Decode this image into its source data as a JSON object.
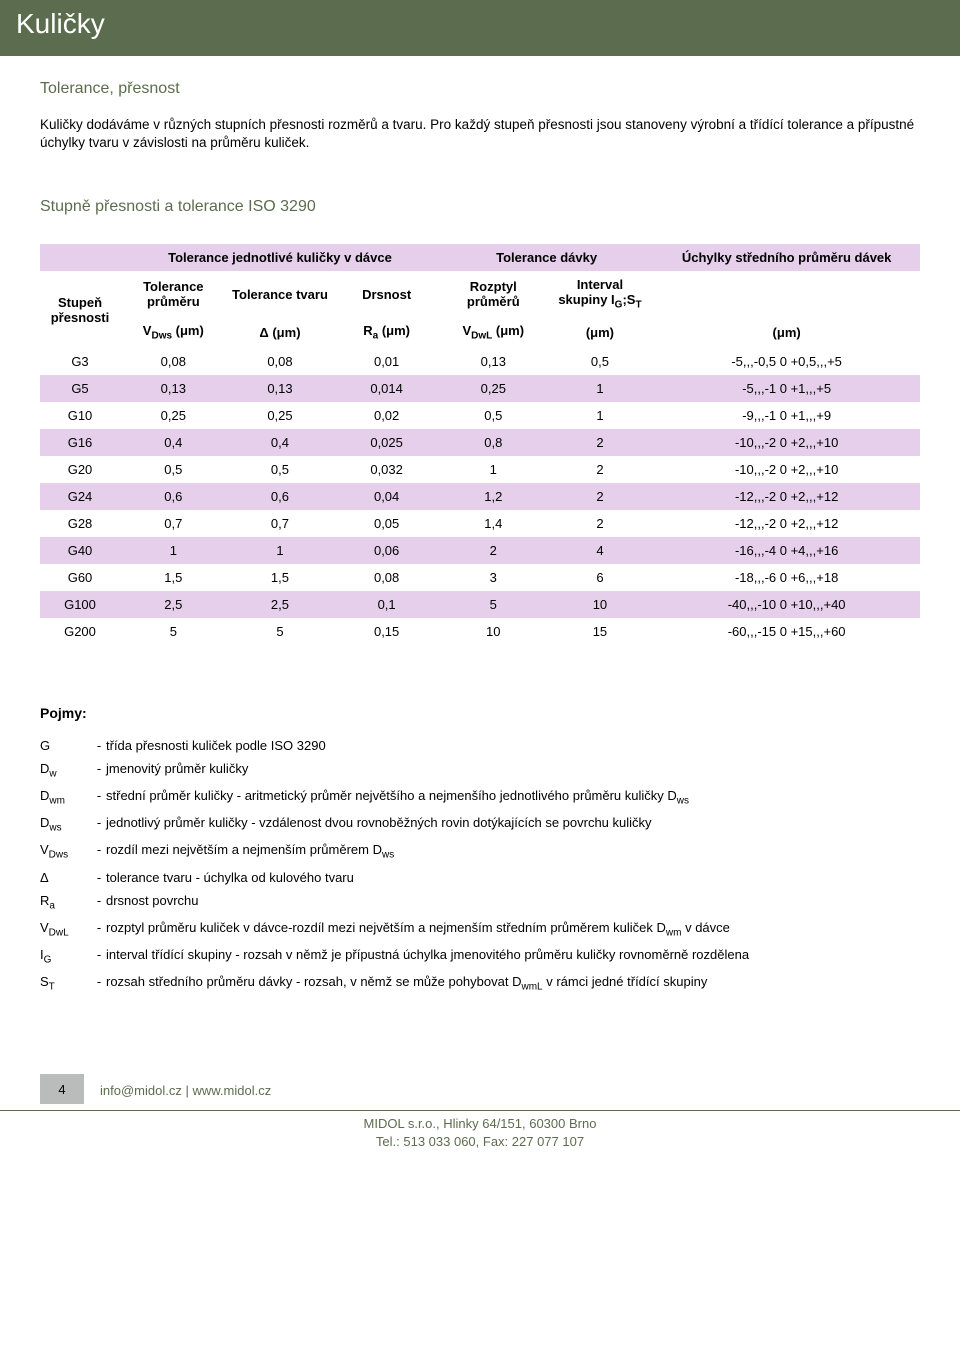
{
  "header": {
    "title": "Kuličky"
  },
  "subtitle": "Tolerance, přesnost",
  "intro": "Kuličky dodáváme v různých stupních přesnosti rozměrů a tvaru. Pro každý stupeň přesnosti  jsou stanoveny výrobní a třídící tolerance a přípustné úchylky tvaru v závislosti na průměru kuliček.",
  "section_title": "Stupně přesnosti a tolerance ISO 3290",
  "table": {
    "group_headers": {
      "blank": "",
      "g1": "Tolerance jednotlivé kuličky v dávce",
      "g2": "Tolerance dávky",
      "g3": "Úchylky středního průměru dávek"
    },
    "sub_headers": {
      "grade": "Stupeň přesnosti",
      "c1": "Tolerance průměru",
      "c2": "Tolerance tvaru",
      "c3": "Drsnost",
      "c4": "Rozptyl průměrů",
      "c5_html": "Interval skupiny I<sub class='sub'>G</sub>;S<sub class='sub'>T</sub>",
      "c6": ""
    },
    "unit_row": {
      "u1_html": "V<sub class='sub'>Dws</sub> (μm)",
      "u2": "Δ (μm)",
      "u3_html": "R<sub class='sub'>a</sub> (μm)",
      "u4_html": "V<sub class='sub'>DwL</sub> (μm)",
      "u5": "(μm)",
      "u6": "(μm)"
    },
    "rows": [
      {
        "g": "G3",
        "v1": "0,08",
        "v2": "0,08",
        "v3": "0,01",
        "v4": "0,13",
        "v5": "0,5",
        "v6": "-5,,,-0,5 0 +0,5,,,+5",
        "alt": false
      },
      {
        "g": "G5",
        "v1": "0,13",
        "v2": "0,13",
        "v3": "0,014",
        "v4": "0,25",
        "v5": "1",
        "v6": "-5,,,-1 0 +1,,,+5",
        "alt": true
      },
      {
        "g": "G10",
        "v1": "0,25",
        "v2": "0,25",
        "v3": "0,02",
        "v4": "0,5",
        "v5": "1",
        "v6": "-9,,,-1 0 +1,,,+9",
        "alt": false
      },
      {
        "g": "G16",
        "v1": "0,4",
        "v2": "0,4",
        "v3": "0,025",
        "v4": "0,8",
        "v5": "2",
        "v6": "-10,,,-2 0 +2,,,+10",
        "alt": true
      },
      {
        "g": "G20",
        "v1": "0,5",
        "v2": "0,5",
        "v3": "0,032",
        "v4": "1",
        "v5": "2",
        "v6": "-10,,,-2 0 +2,,,+10",
        "alt": false
      },
      {
        "g": "G24",
        "v1": "0,6",
        "v2": "0,6",
        "v3": "0,04",
        "v4": "1,2",
        "v5": "2",
        "v6": "-12,,,-2 0 +2,,,+12",
        "alt": true
      },
      {
        "g": "G28",
        "v1": "0,7",
        "v2": "0,7",
        "v3": "0,05",
        "v4": "1,4",
        "v5": "2",
        "v6": "-12,,,-2 0 +2,,,+12",
        "alt": false
      },
      {
        "g": "G40",
        "v1": "1",
        "v2": "1",
        "v3": "0,06",
        "v4": "2",
        "v5": "4",
        "v6": "-16,,,-4 0 +4,,,+16",
        "alt": true
      },
      {
        "g": "G60",
        "v1": "1,5",
        "v2": "1,5",
        "v3": "0,08",
        "v4": "3",
        "v5": "6",
        "v6": "-18,,,-6 0 +6,,,+18",
        "alt": false
      },
      {
        "g": "G100",
        "v1": "2,5",
        "v2": "2,5",
        "v3": "0,1",
        "v4": "5",
        "v5": "10",
        "v6": "-40,,,-10 0 +10,,,+40",
        "alt": true
      },
      {
        "g": "G200",
        "v1": "5",
        "v2": "5",
        "v3": "0,15",
        "v4": "10",
        "v5": "15",
        "v6": "-60,,,-15 0 +15,,,+60",
        "alt": false
      }
    ],
    "colors": {
      "header_bg": "#e5cfeb",
      "alt_row_bg": "#e5cfeb",
      "text": "#000000"
    }
  },
  "pojmy": {
    "title": "Pojmy:",
    "items": [
      {
        "sym_html": "G",
        "def": "třída přesnosti kuliček podle ISO 3290"
      },
      {
        "sym_html": "D<sub class='sub'>w</sub>",
        "def": "jmenovitý průměr kuličky"
      },
      {
        "sym_html": "D<sub class='sub'>wm</sub>",
        "def_html": "střední průměr kuličky - aritmetický průměr největšího a nejmenšího jednotlivého průměru kuličky D<sub class='sub'>ws</sub>"
      },
      {
        "sym_html": "D<sub class='sub'>ws</sub>",
        "def": "jednotlivý průměr kuličky - vzdálenost dvou rovnoběžných rovin dotýkajících se povrchu kuličky"
      },
      {
        "sym_html": "V<sub class='sub'>Dws</sub>",
        "def_html": "rozdíl mezi největším a nejmenším průměrem D<sub class='sub'>ws</sub>"
      },
      {
        "sym_html": "Δ",
        "def": "tolerance tvaru - úchylka od kulového tvaru"
      },
      {
        "sym_html": "R<sub class='sub'>a</sub>",
        "def": "drsnost povrchu"
      },
      {
        "sym_html": "V<sub class='sub'>DwL</sub>",
        "def_html": "rozptyl průměru kuliček v dávce-rozdíl mezi největším a nejmenším středním průměrem kuliček D<sub class='sub'>wm</sub> v dávce"
      },
      {
        "sym_html": "I<sub class='sub'>G</sub>",
        "def": "interval třídící skupiny - rozsah v němž je přípustná úchylka jmenovitého průměru kuličky rovnoměrně rozdělena"
      },
      {
        "sym_html": "S<sub class='sub'>T</sub>",
        "def_html": "rozsah středního průměru dávky - rozsah, v němž se může pohybovat D<sub class='sub'>wmL</sub> v rámci jedné třídící skupiny"
      }
    ]
  },
  "footer": {
    "page": "4",
    "email": "info@midol.cz",
    "sep": " | ",
    "web": "www.midol.cz",
    "line1": "MIDOL s.r.o., Hlinky 64/151, 60300 Brno",
    "line2": "Tel.: 513 033 060, Fax: 227 077 107"
  },
  "colors": {
    "brand_green": "#5c6d4f",
    "badge_grey": "#babbbb",
    "white": "#ffffff",
    "black": "#000000"
  }
}
